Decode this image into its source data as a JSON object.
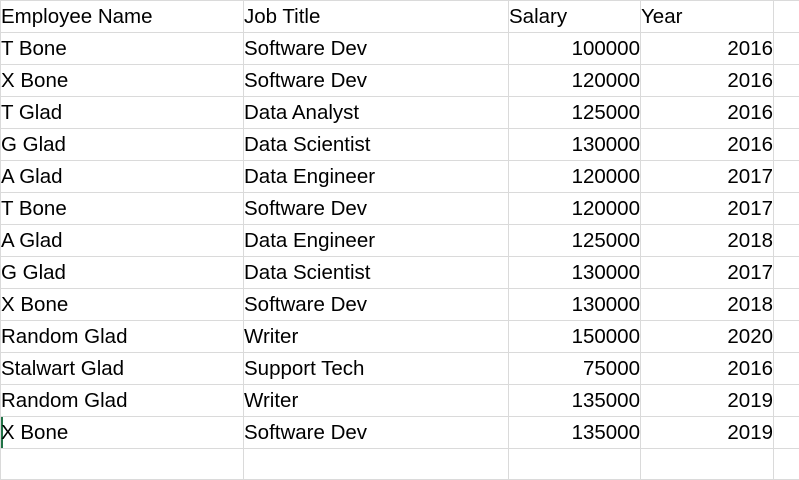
{
  "headers": [
    "Employee Name",
    "Job Title",
    "Salary",
    "Year"
  ],
  "rows": [
    [
      "T Bone",
      "Software Dev",
      "100000",
      "2016"
    ],
    [
      "X Bone",
      "Software Dev",
      "120000",
      "2016"
    ],
    [
      "T Glad",
      "Data Analyst",
      "125000",
      "2016"
    ],
    [
      "G Glad",
      "Data Scientist",
      "130000",
      "2016"
    ],
    [
      "A Glad",
      "Data Engineer",
      "120000",
      "2017"
    ],
    [
      "T Bone",
      "Software Dev",
      "120000",
      "2017"
    ],
    [
      "A Glad",
      "Data Engineer",
      "125000",
      "2018"
    ],
    [
      "G Glad",
      "Data Scientist",
      "130000",
      "2017"
    ],
    [
      "X Bone",
      "Software Dev",
      "130000",
      "2018"
    ],
    [
      "Random Glad",
      "Writer",
      "150000",
      "2020"
    ],
    [
      "Stalwart Glad",
      "Support Tech",
      "75000",
      "2016"
    ],
    [
      "Random Glad",
      "Writer",
      "135000",
      "2019"
    ],
    [
      "X Bone",
      "Software Dev",
      "135000",
      "2019"
    ]
  ],
  "colors": {
    "gridline": "#dadada",
    "active_cell_marker": "#217346"
  }
}
